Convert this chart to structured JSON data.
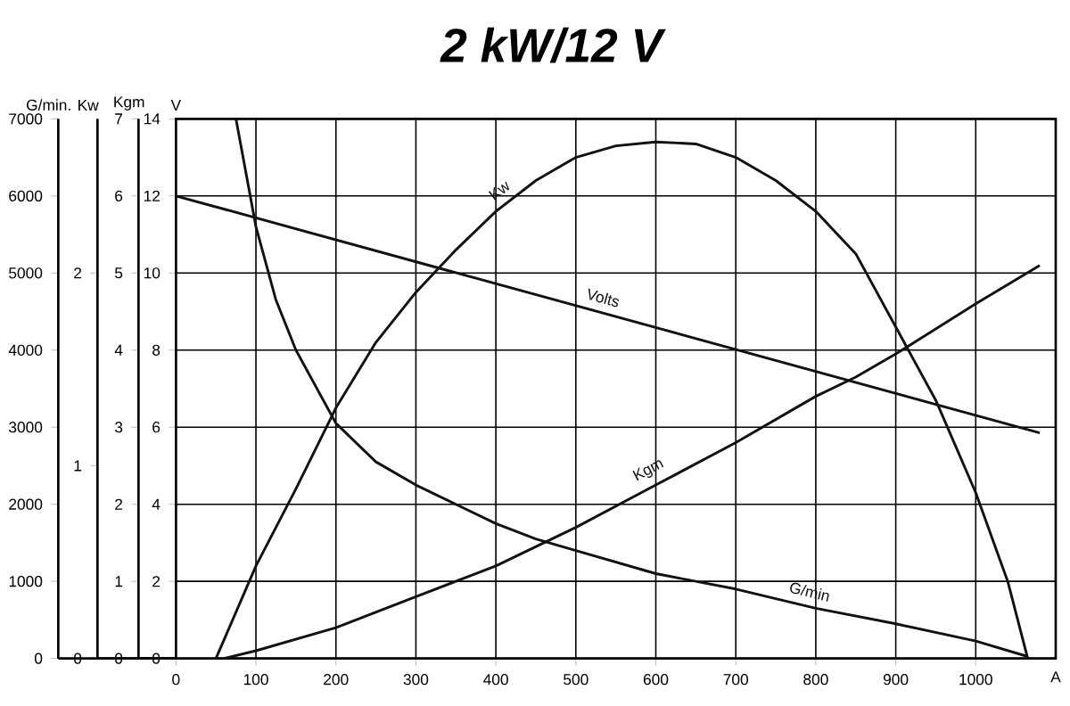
{
  "chart_data": [
    {
      "type": "line",
      "title": "2 kW/12 V",
      "xlabel": "A",
      "xlim": [
        0,
        1100
      ],
      "xticks": [
        0,
        100,
        200,
        300,
        400,
        500,
        600,
        700,
        800,
        900,
        1000
      ],
      "ylabel": "V",
      "ylim": [
        0,
        14
      ],
      "yticks": [
        0,
        2,
        4,
        6,
        8,
        10,
        12,
        14
      ],
      "y2label": "Kgm",
      "y2lim": [
        0,
        7
      ],
      "y2ticks": [
        0,
        1,
        2,
        3,
        4,
        5,
        6,
        7
      ],
      "y3label": "Kw",
      "y3lim": [
        0,
        2.8
      ],
      "y3ticks": [
        0,
        1,
        2
      ],
      "grid": true,
      "series": [
        {
          "name": "Volts",
          "color": "#111111",
          "axis": "y",
          "x": [
            0,
            1080
          ],
          "values": [
            12,
            5.85
          ]
        },
        {
          "name": "Kw",
          "color": "#111111",
          "axis": "y3",
          "x": [
            50,
            100,
            150,
            200,
            250,
            300,
            350,
            400,
            450,
            500,
            550,
            600,
            650,
            700,
            750,
            800,
            850,
            900,
            950,
            1000,
            1040,
            1065
          ],
          "values": [
            0,
            0.48,
            0.88,
            1.3,
            1.64,
            1.9,
            2.12,
            2.32,
            2.48,
            2.6,
            2.66,
            2.68,
            2.67,
            2.6,
            2.48,
            2.32,
            2.1,
            1.72,
            1.34,
            0.86,
            0.4,
            0
          ]
        },
        {
          "name": "Kgm",
          "color": "#111111",
          "axis": "y2",
          "x": [
            60,
            100,
            200,
            300,
            400,
            500,
            600,
            700,
            800,
            850,
            900,
            1000,
            1080
          ],
          "values": [
            0,
            0.1,
            0.4,
            0.8,
            1.2,
            1.7,
            2.25,
            2.8,
            3.4,
            3.65,
            3.95,
            4.6,
            5.1
          ]
        }
      ]
    },
    {
      "type": "line",
      "ylabel": "G/min.",
      "xlim": [
        0,
        1100
      ],
      "ylim": [
        0,
        7000
      ],
      "yticks": [
        0,
        1000,
        2000,
        3000,
        4000,
        5000,
        6000,
        7000
      ],
      "tick_labels": "y",
      "series": [
        {
          "name": "G/min",
          "color": "#111111",
          "x": [
            75,
            100,
            125,
            150,
            200,
            250,
            300,
            350,
            400,
            450,
            500,
            600,
            700,
            800,
            900,
            1000,
            1065
          ],
          "values": [
            7000,
            5600,
            4650,
            4000,
            3050,
            2550,
            2250,
            2000,
            1750,
            1550,
            1400,
            1100,
            900,
            650,
            450,
            225,
            25
          ]
        }
      ]
    }
  ]
}
